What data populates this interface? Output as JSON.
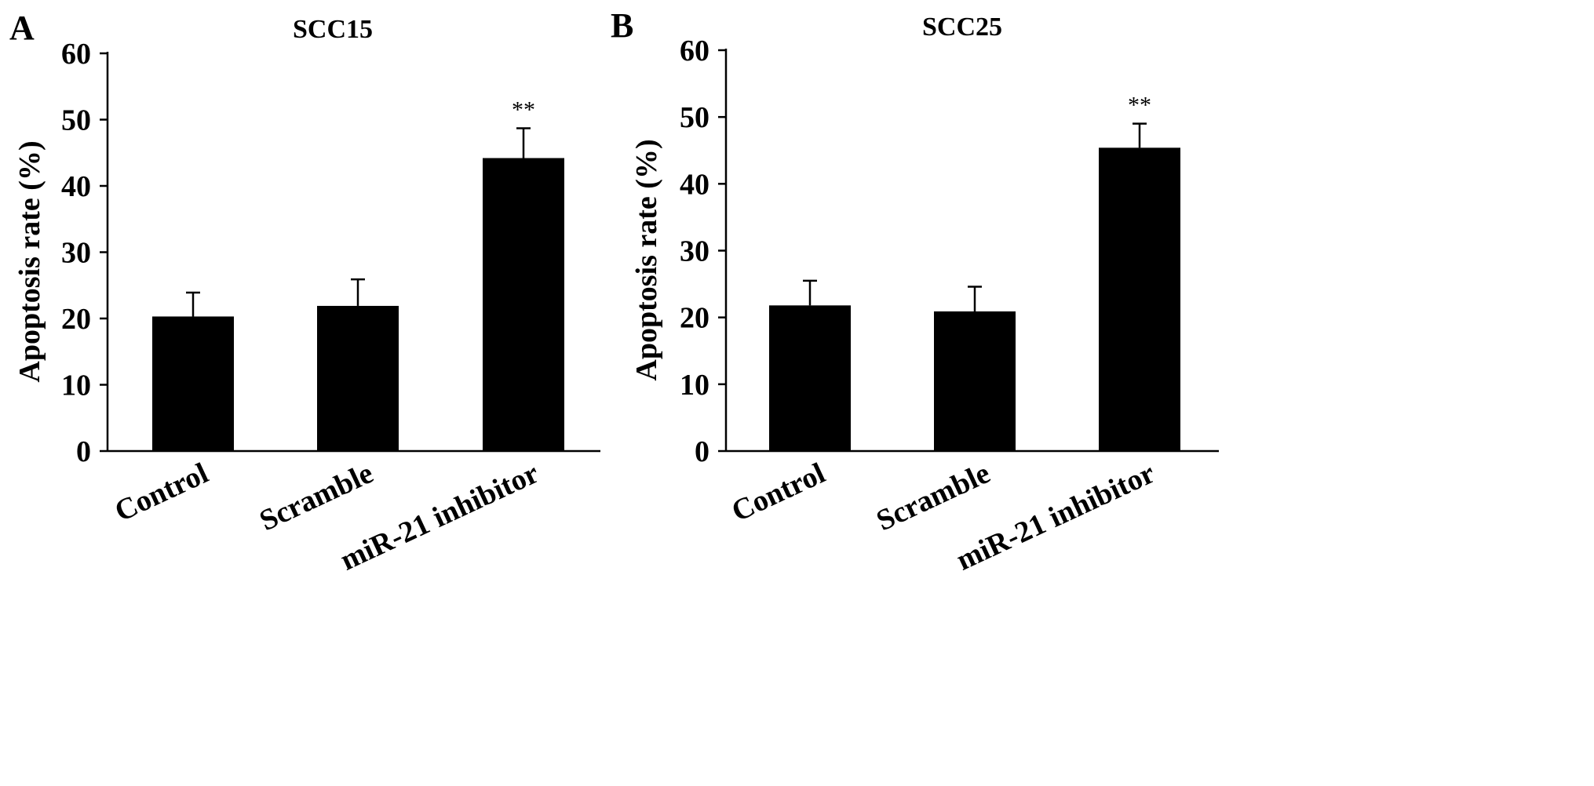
{
  "chart_data": [
    {
      "type": "bar",
      "panel_label": "A",
      "title": "SCC15",
      "ylabel": "Apoptosis rate (%)",
      "xlabel": "",
      "categories": [
        "Control",
        "Scramble",
        "miR-21 inhibitor"
      ],
      "values": [
        20.3,
        21.9,
        44.2
      ],
      "error_upper": [
        3.6,
        4.0,
        4.5
      ],
      "annotations": [
        "",
        "",
        "**"
      ],
      "ylim": [
        0,
        60
      ],
      "yticks": [
        0,
        10,
        20,
        30,
        40,
        50,
        60
      ],
      "yticklabels": [
        "0",
        "10",
        "20",
        "30",
        "40",
        "50",
        "60"
      ],
      "grid": false,
      "legend": "none",
      "bar_color": "#000000"
    },
    {
      "type": "bar",
      "panel_label": "B",
      "title": "SCC25",
      "ylabel": "Apoptosis rate (%)",
      "xlabel": "",
      "categories": [
        "Control",
        "Scramble",
        "miR-21 inhibitor"
      ],
      "values": [
        21.8,
        20.9,
        45.4
      ],
      "error_upper": [
        3.7,
        3.7,
        3.6
      ],
      "annotations": [
        "",
        "",
        "**"
      ],
      "ylim": [
        0,
        60
      ],
      "yticks": [
        0,
        10,
        20,
        30,
        40,
        50,
        60
      ],
      "yticklabels": [
        "0",
        "10",
        "20",
        "30",
        "40",
        "50",
        "60"
      ],
      "grid": false,
      "legend": "none",
      "bar_color": "#000000"
    }
  ]
}
